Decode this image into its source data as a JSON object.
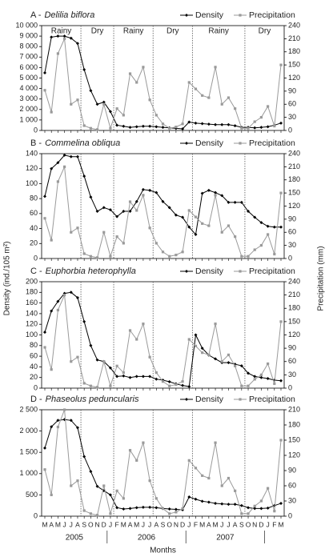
{
  "chart_data": [
    {
      "type": "line",
      "panel": "A -",
      "title": "Delilia biflora",
      "ylabel": "Density (ind./105 m²)",
      "y2label": "Precipitation (mm)",
      "seasons": [
        "Rainy",
        "Dry",
        "Rainy",
        "Dry",
        "Rainy",
        "Dry"
      ],
      "season_dividers": [
        5.5,
        10.5,
        16.5,
        22.5,
        30.5
      ],
      "series": [
        {
          "name": "Density",
          "color": "#000000",
          "values": [
            5500,
            8900,
            9000,
            9000,
            8800,
            8300,
            5800,
            3800,
            2500,
            2700,
            1800,
            500,
            400,
            300,
            350,
            400,
            400,
            350,
            300,
            250,
            200,
            150,
            800,
            700,
            650,
            600,
            550,
            550,
            550,
            450,
            300,
            300,
            250,
            300,
            350,
            500,
            700
          ]
        },
        {
          "name": "Precipitation",
          "color": "#9a9a9a",
          "axis": "y2",
          "values": [
            92,
            42,
            176,
            210,
            60,
            70,
            11,
            5,
            2,
            60,
            5,
            50,
            35,
            130,
            110,
            145,
            70,
            35,
            15,
            5,
            8,
            15,
            110,
            95,
            80,
            75,
            145,
            60,
            75,
            50,
            5,
            5,
            20,
            30,
            55,
            10,
            150
          ]
        }
      ],
      "ylim": [
        0,
        10000
      ],
      "yticks": [
        0,
        {
          "value": 1000,
          "label": "1 000"
        },
        {
          "value": 2000,
          "label": "2 000"
        },
        {
          "value": 3000,
          "label": "3 000"
        },
        {
          "value": 4000,
          "label": "4 000"
        },
        {
          "value": 5000,
          "label": "5 000"
        },
        {
          "value": 6000,
          "label": "6 000"
        },
        {
          "value": 7000,
          "label": "7 000"
        },
        {
          "value": 8000,
          "label": "8 000"
        },
        {
          "value": 9000,
          "label": "9 000"
        },
        {
          "value": 10000,
          "label": "10 000"
        }
      ],
      "y2lim": [
        0,
        240
      ],
      "y2ticks": [
        0,
        30,
        60,
        90,
        120,
        150,
        180,
        210,
        240
      ]
    },
    {
      "type": "line",
      "panel": "B -",
      "title": "Commelina obliqua",
      "season_dividers": [
        5.5,
        10.5,
        16.5,
        22.5,
        30.5
      ],
      "series": [
        {
          "name": "Density",
          "color": "#000000",
          "values": [
            83,
            120,
            128,
            138,
            136,
            136,
            110,
            82,
            63,
            68,
            65,
            56,
            63,
            63,
            76,
            92,
            91,
            88,
            76,
            68,
            58,
            55,
            42,
            32,
            87,
            91,
            88,
            84,
            75,
            75,
            75,
            63,
            55,
            48,
            43,
            42,
            42
          ]
        },
        {
          "name": "Precipitation",
          "color": "#9a9a9a",
          "axis": "y2",
          "values": [
            92,
            42,
            176,
            210,
            60,
            70,
            11,
            5,
            2,
            60,
            5,
            50,
            35,
            130,
            110,
            145,
            70,
            35,
            15,
            5,
            8,
            15,
            110,
            95,
            80,
            75,
            145,
            60,
            75,
            50,
            5,
            5,
            20,
            30,
            55,
            10,
            150
          ]
        }
      ],
      "ylim": [
        0,
        140
      ],
      "yticks": [
        0,
        20,
        40,
        60,
        80,
        100,
        120,
        140
      ],
      "y2lim": [
        0,
        240
      ],
      "y2ticks": [
        0,
        30,
        60,
        90,
        120,
        150,
        180,
        210,
        240
      ]
    },
    {
      "type": "line",
      "panel": "C -",
      "title": "Euphorbia heterophylla",
      "season_dividers": [
        5.5,
        10.5,
        16.5,
        22.5,
        30.5
      ],
      "series": [
        {
          "name": "Density",
          "color": "#000000",
          "values": [
            105,
            145,
            163,
            178,
            180,
            170,
            125,
            80,
            53,
            50,
            38,
            22,
            23,
            20,
            22,
            22,
            22,
            17,
            15,
            12,
            8,
            5,
            3,
            100,
            75,
            62,
            55,
            48,
            48,
            45,
            42,
            28,
            22,
            20,
            18,
            15,
            14
          ]
        },
        {
          "name": "Precipitation",
          "color": "#9a9a9a",
          "axis": "y2",
          "values": [
            92,
            42,
            176,
            210,
            60,
            70,
            11,
            5,
            2,
            60,
            5,
            50,
            35,
            130,
            110,
            145,
            70,
            35,
            15,
            5,
            8,
            15,
            110,
            95,
            80,
            75,
            145,
            60,
            75,
            50,
            5,
            5,
            20,
            30,
            55,
            10,
            150
          ]
        }
      ],
      "ylim": [
        0,
        200
      ],
      "yticks": [
        0,
        20,
        40,
        60,
        80,
        100,
        120,
        140,
        160,
        180,
        200
      ],
      "y2lim": [
        0,
        240
      ],
      "y2ticks": [
        0,
        30,
        60,
        90,
        120,
        150,
        180,
        210,
        240
      ]
    },
    {
      "type": "line",
      "panel": "D -",
      "title": "Phaseolus peduncularis",
      "season_dividers": [
        5.5,
        10.5,
        16.5,
        22.5,
        30.5
      ],
      "xlabel": "Months",
      "categories": [
        "M",
        "A",
        "M",
        "J",
        "J",
        "A",
        "S",
        "O",
        "N",
        "D",
        "J",
        "F",
        "M",
        "A",
        "M",
        "J",
        "J",
        "A",
        "S",
        "O",
        "N",
        "D",
        "J",
        "F",
        "M",
        "A",
        "M",
        "J",
        "J",
        "A",
        "S",
        "O",
        "N",
        "D",
        "J",
        "F",
        "M"
      ],
      "years": [
        {
          "label": "2005",
          "first": 0,
          "last": 9
        },
        {
          "label": "2006",
          "first": 10,
          "last": 21
        },
        {
          "label": "2007",
          "first": 22,
          "last": 33
        }
      ],
      "series": [
        {
          "name": "Density",
          "color": "#000000",
          "values": [
            1600,
            2100,
            2250,
            2270,
            2250,
            2080,
            1400,
            1050,
            700,
            600,
            500,
            200,
            170,
            180,
            200,
            210,
            210,
            200,
            180,
            170,
            160,
            150,
            450,
            400,
            350,
            330,
            300,
            290,
            280,
            280,
            250,
            200,
            180,
            180,
            190,
            250,
            300
          ]
        },
        {
          "name": "Precipitation",
          "color": "#9a9a9a",
          "axis": "y2",
          "values": [
            92,
            42,
            176,
            210,
            60,
            70,
            11,
            5,
            2,
            60,
            5,
            50,
            35,
            130,
            110,
            145,
            70,
            35,
            15,
            5,
            8,
            15,
            110,
            95,
            80,
            75,
            145,
            60,
            75,
            50,
            5,
            5,
            20,
            30,
            55,
            10,
            150
          ]
        }
      ],
      "ylim": [
        0,
        2500
      ],
      "yticks": [
        0,
        500,
        {
          "value": 1000,
          "label": "1 000"
        },
        {
          "value": 1500,
          "label": "1 500"
        },
        {
          "value": 2000,
          "label": "2 000"
        },
        {
          "value": 2500,
          "label": "2 500"
        }
      ],
      "y2lim": [
        0,
        210
      ],
      "y2ticks": [
        0,
        30,
        60,
        90,
        120,
        150,
        180,
        210
      ]
    }
  ]
}
